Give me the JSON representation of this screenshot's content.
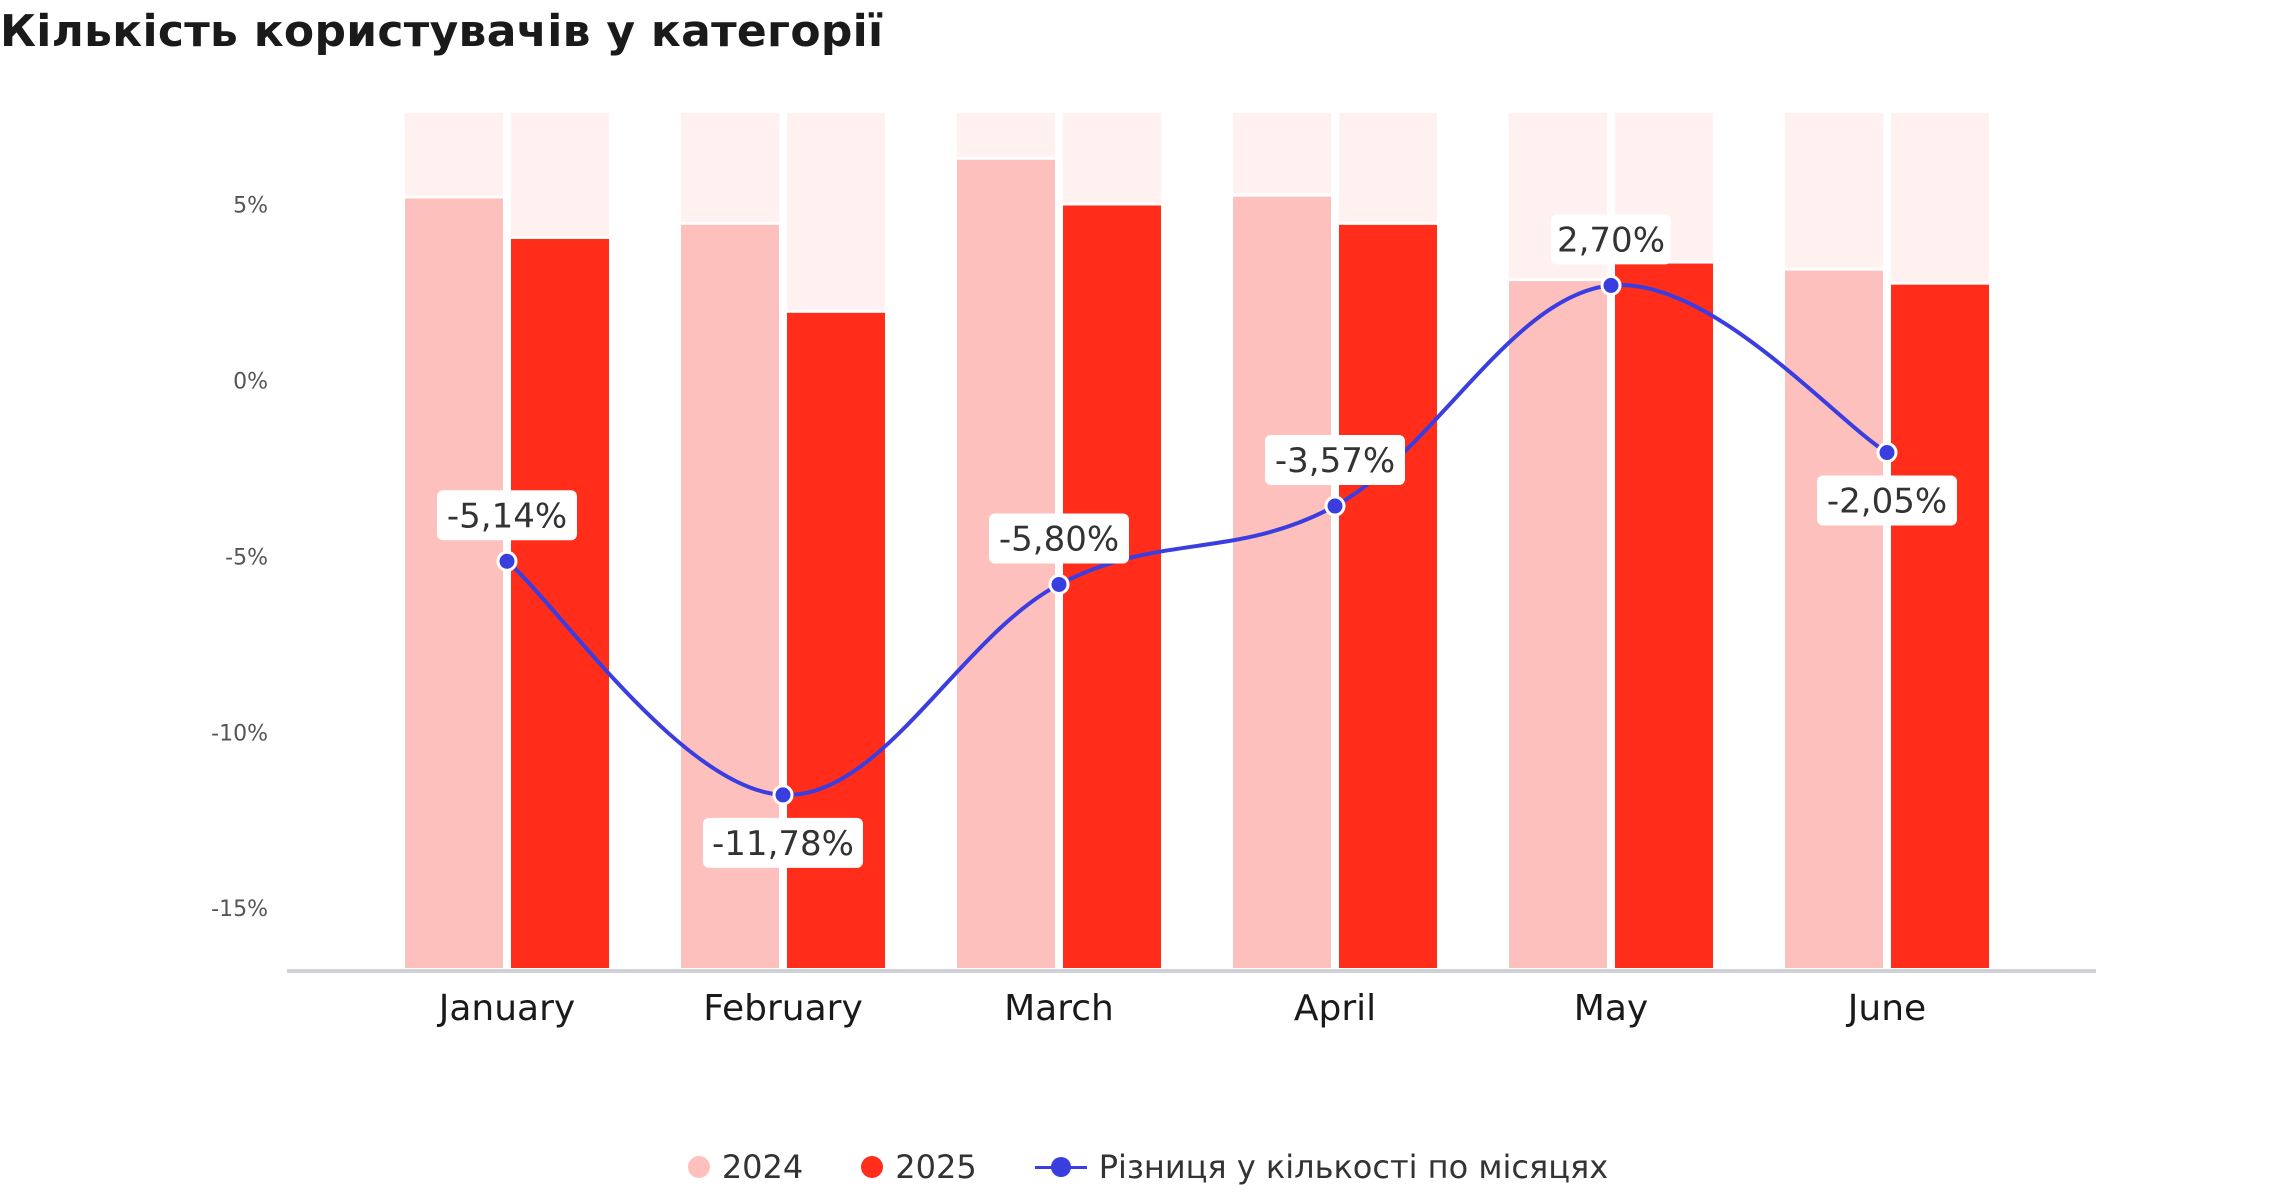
{
  "chart_data": {
    "type": "bar",
    "title": "Кількість користувачів у категорії",
    "categories": [
      "January",
      "February",
      "March",
      "April",
      "May",
      "June"
    ],
    "series": [
      {
        "name": "2024",
        "type": "bar",
        "color": "#fdc0bc",
        "values": [
          5.2,
          4.45,
          6.3,
          5.25,
          2.85,
          3.15
        ]
      },
      {
        "name": "2025",
        "type": "bar",
        "color": "#ff2d1a",
        "values": [
          4.05,
          1.95,
          5.0,
          4.45,
          3.35,
          2.75
        ]
      },
      {
        "name": "Різниця у кількості по місяцях",
        "type": "line",
        "color": "#3a3ee0",
        "values": [
          -5.14,
          -11.78,
          -5.8,
          -3.57,
          2.7,
          -2.05
        ],
        "labels": [
          "-5,14%",
          "-11,78%",
          "-5,80%",
          "-3,57%",
          "2,70%",
          "-2,05%"
        ]
      }
    ],
    "background_color": "#fff1f0",
    "yticks": [
      {
        "value": 5,
        "label": "5%"
      },
      {
        "value": 0,
        "label": "0%"
      },
      {
        "value": -5,
        "label": "-5%"
      },
      {
        "value": -10,
        "label": "-10%"
      },
      {
        "value": -15,
        "label": "-15%"
      }
    ],
    "ylim": [
      -16.7,
      7.6
    ],
    "legend_position": "bottom-center",
    "grid": false
  }
}
